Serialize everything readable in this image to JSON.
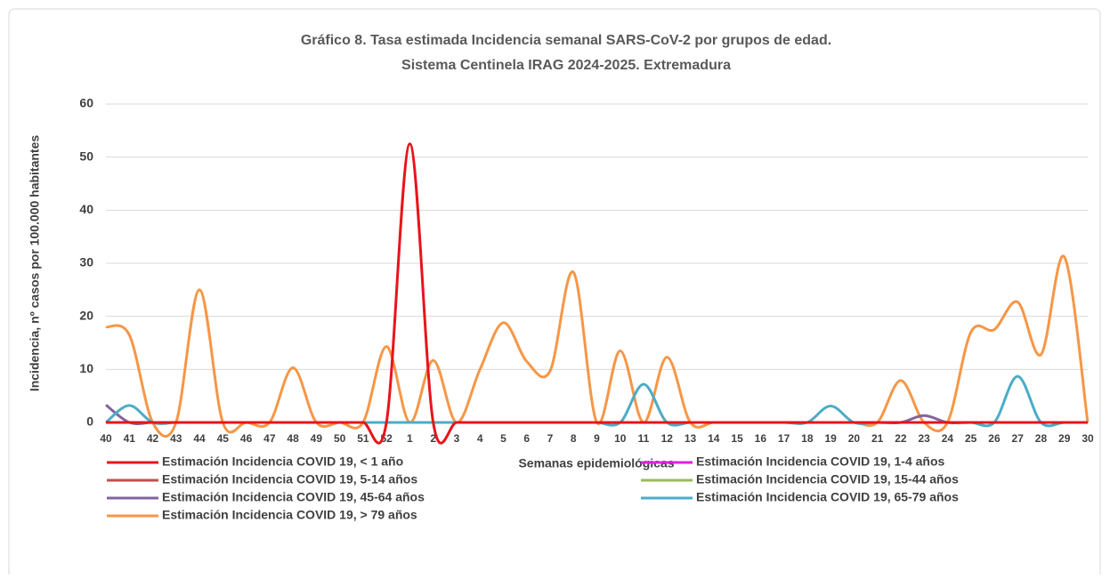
{
  "chart_data": {
    "type": "line",
    "title": "Gráfico 8. Tasa estimada Incidencia semanal SARS-CoV-2 por grupos de edad.",
    "subtitle": "Sistema Centinela IRAG 2024-2025. Extremadura",
    "x_label": "Semanas epidemiológicas",
    "y_label": "Incidencia, nº casos por 100.000 habitantes",
    "categories": [
      "40",
      "41",
      "42",
      "43",
      "44",
      "45",
      "46",
      "47",
      "48",
      "49",
      "50",
      "51",
      "52",
      "1",
      "2",
      "3",
      "4",
      "5",
      "6",
      "7",
      "8",
      "9",
      "10",
      "11",
      "12",
      "13",
      "14",
      "15",
      "16",
      "17",
      "18",
      "19",
      "20",
      "21",
      "22",
      "23",
      "24",
      "25",
      "26",
      "27",
      "28",
      "29",
      "30"
    ],
    "ylim": [
      0,
      60
    ],
    "yticks": [
      0,
      10,
      20,
      30,
      40,
      50,
      60
    ],
    "grid": true,
    "smooth": true,
    "legend": "bottom",
    "series": [
      {
        "name": "Estimación Incidencia COVID 19, > 79 años",
        "color": "#f79646",
        "values": [
          18,
          16.5,
          0,
          0,
          25,
          0,
          0,
          0,
          10.3,
          0,
          0,
          0,
          14.3,
          0,
          11.7,
          0,
          10,
          18.8,
          11.5,
          9.7,
          28.3,
          0,
          13.5,
          0,
          12.3,
          0,
          0,
          0,
          0,
          0,
          0,
          0,
          0,
          0,
          7.9,
          0,
          0,
          17,
          17.5,
          22.7,
          12.8,
          31.2,
          0
        ]
      },
      {
        "name": "Estimación Incidencia COVID 19, 1-4 años",
        "color": "#e020e0",
        "values": [
          0,
          0,
          0,
          0,
          0,
          0,
          0,
          0,
          0,
          0,
          0,
          0,
          0,
          0,
          0,
          0,
          0,
          0,
          0,
          0,
          0,
          0,
          0,
          0,
          0,
          0,
          0,
          0,
          0,
          0,
          0,
          0,
          0,
          0,
          0,
          0,
          0,
          0,
          0,
          0,
          0,
          0,
          0
        ]
      },
      {
        "name": "Estimación Incidencia COVID 19, 5-14 años",
        "color": "#c0504d",
        "values": [
          0,
          0,
          0,
          0,
          0,
          0,
          0,
          0,
          0,
          0,
          0,
          0,
          0,
          0,
          0,
          0,
          0,
          0,
          0,
          0,
          0,
          0,
          0,
          0,
          0,
          0,
          0,
          0,
          0,
          0,
          0,
          0,
          0,
          0,
          0,
          0,
          0,
          0,
          0,
          0,
          0,
          0,
          0
        ]
      },
      {
        "name": "Estimación Incidencia COVID 19, 15-44 años",
        "color": "#9bbb59",
        "values": [
          0,
          0,
          0,
          0,
          0,
          0,
          0,
          0,
          0,
          0,
          0,
          0,
          0,
          0,
          0,
          0,
          0,
          0,
          0,
          0,
          0,
          0,
          0,
          0,
          0,
          0,
          0,
          0,
          0,
          0,
          0,
          0,
          0,
          0,
          0,
          0,
          0,
          0,
          0,
          0,
          0,
          0,
          0
        ]
      },
      {
        "name": "Estimación Incidencia COVID 19, 45-64 años",
        "color": "#8064a2",
        "values": [
          3.3,
          0,
          0,
          0,
          0,
          0,
          0,
          0,
          0,
          0,
          0,
          0,
          0,
          0,
          0,
          0,
          0,
          0,
          0,
          0,
          0,
          0,
          0,
          0,
          0,
          0,
          0,
          0,
          0,
          0,
          0,
          0,
          0,
          0,
          0,
          1.3,
          0,
          0,
          0,
          0,
          0,
          0,
          0
        ]
      },
      {
        "name": "Estimación Incidencia COVID 19, 65-79 años",
        "color": "#4bacc6",
        "values": [
          0,
          3.2,
          0,
          0,
          0,
          0,
          0,
          0,
          0,
          0,
          0,
          0,
          0,
          0,
          0,
          0,
          0,
          0,
          0,
          0,
          0,
          0,
          0,
          7.2,
          0,
          0,
          0,
          0,
          0,
          0,
          0,
          3.1,
          0,
          0,
          0,
          0,
          0,
          0,
          0,
          8.7,
          0,
          0,
          0
        ]
      },
      {
        "name": "Estimación Incidencia COVID 19, < 1 año",
        "color": "#e8141a",
        "values": [
          0,
          0,
          0,
          0,
          0,
          0,
          0,
          0,
          0,
          0,
          0,
          0,
          0,
          52.5,
          0,
          0,
          0,
          0,
          0,
          0,
          0,
          0,
          0,
          0,
          0,
          0,
          0,
          0,
          0,
          0,
          0,
          0,
          0,
          0,
          0,
          0,
          0,
          0,
          0,
          0,
          0,
          0,
          0
        ]
      }
    ],
    "legend_order": [
      6,
      1,
      2,
      3,
      4,
      5,
      0
    ]
  }
}
